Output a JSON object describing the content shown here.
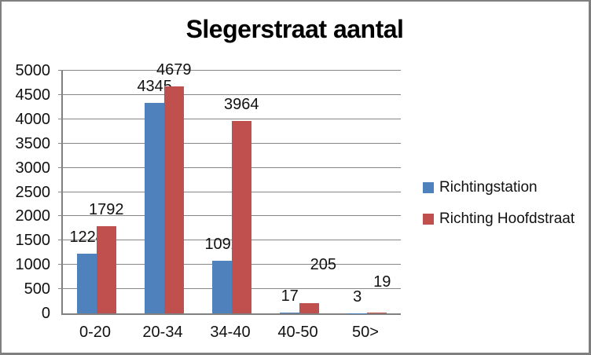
{
  "window": {
    "background": "#ffffff",
    "border_color": "#7f7f7f"
  },
  "chart_data": {
    "type": "bar",
    "title": "Slegerstraat aantal",
    "categories": [
      "0-20",
      "20-34",
      "34-40",
      "40-50",
      "50>"
    ],
    "series": [
      {
        "name": "Richtingstation",
        "color": "#4f81bd",
        "values": [
          1224,
          4345,
          1092,
          17,
          3
        ],
        "label_offsets": [
          [
            0,
            0
          ],
          [
            0,
            0
          ],
          [
            0,
            0
          ],
          [
            0,
            0
          ],
          [
            0,
            0
          ]
        ]
      },
      {
        "name": "Richting Hoofdstraat",
        "color": "#c0504d",
        "values": [
          1792,
          4679,
          3964,
          205,
          19
        ],
        "label_offsets": [
          [
            0,
            0
          ],
          [
            0,
            0
          ],
          [
            0,
            0
          ],
          [
            18,
            28
          ],
          [
            7,
            18
          ]
        ]
      }
    ],
    "xlabel": "",
    "ylabel": "",
    "ylim": [
      0,
      5000
    ],
    "yticks": [
      0,
      500,
      1000,
      1500,
      2000,
      2500,
      3000,
      3500,
      4000,
      4500,
      5000
    ],
    "grid": true,
    "data_labels": true,
    "legend_position": "right",
    "gridline_color": "#878787",
    "axis_color": "#808080",
    "gap_width_ratio": 1.5
  }
}
